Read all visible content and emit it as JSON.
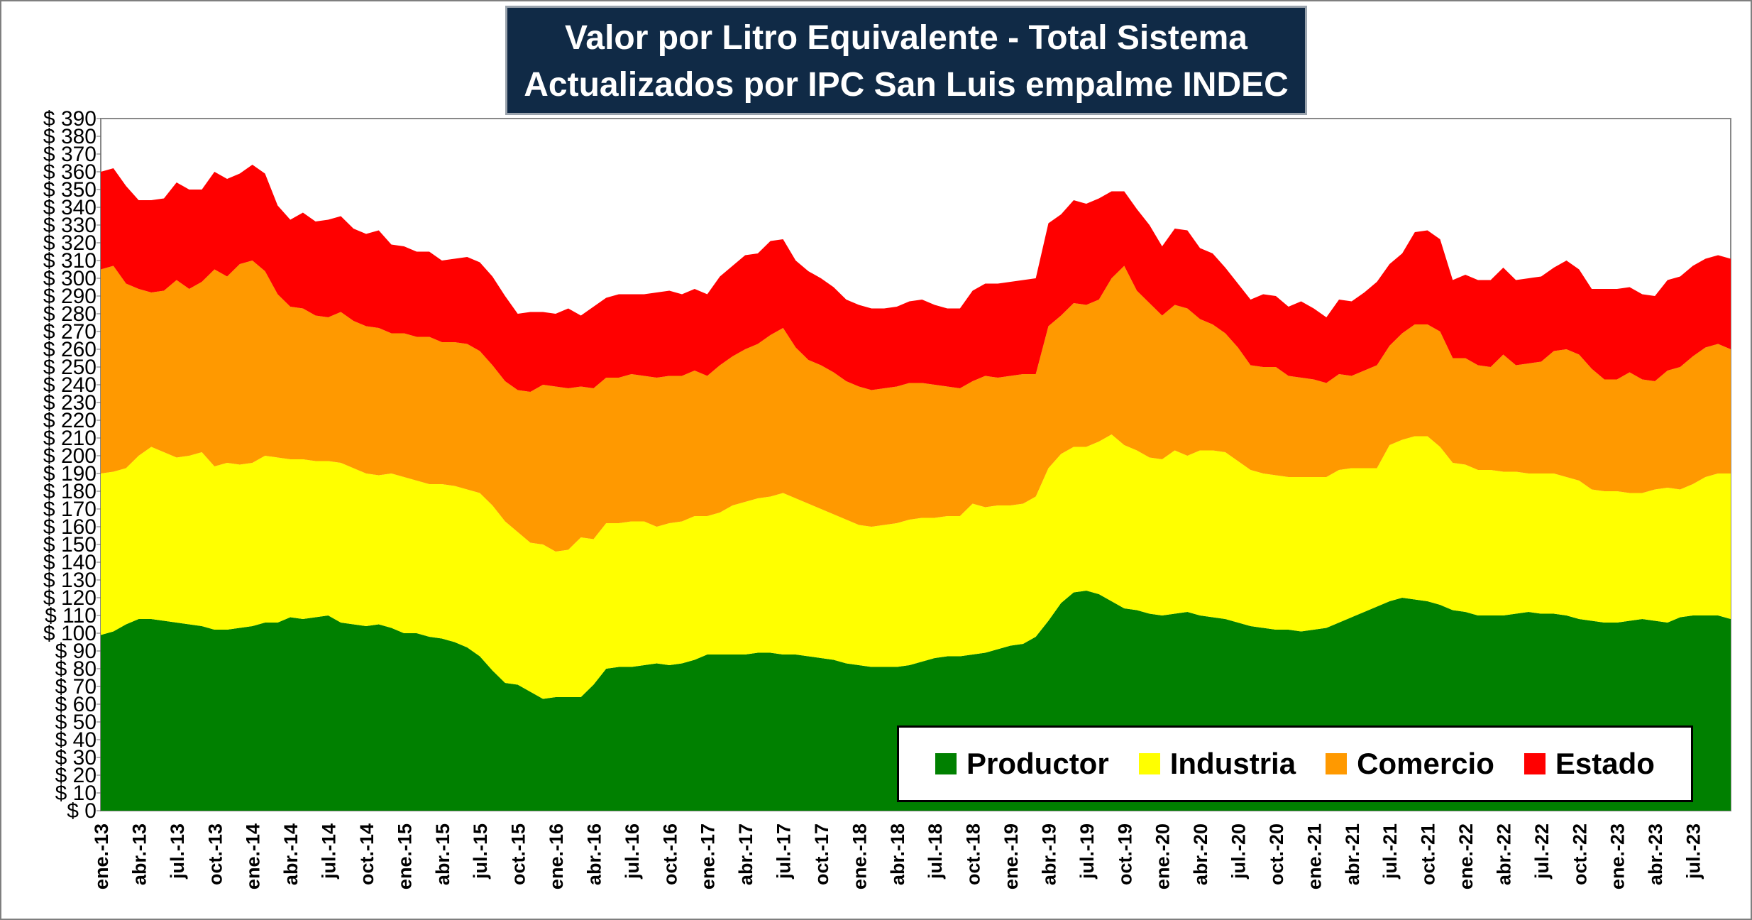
{
  "chart_data": {
    "type": "area",
    "stacked": true,
    "title": "Valor por Litro Equivalente - Total Sistema",
    "subtitle": "Actualizados por IPC San Luis empalme INDEC",
    "ylim": [
      0,
      390
    ],
    "ytick_step": 10,
    "ytick_prefix": "$",
    "grid": false,
    "legend_position": "bottom-right",
    "x_tick_labels": [
      "ene.-13",
      "abr.-13",
      "jul.-13",
      "oct.-13",
      "ene.-14",
      "abr.-14",
      "jul.-14",
      "oct.-14",
      "ene.-15",
      "abr.-15",
      "jul.-15",
      "oct.-15",
      "ene.-16",
      "abr.-16",
      "jul.-16",
      "oct.-16",
      "ene.-17",
      "abr.-17",
      "jul.-17",
      "oct.-17",
      "ene.-18",
      "abr.-18",
      "jul.-18",
      "oct.-18",
      "ene.-19",
      "abr.-19",
      "jul.-19",
      "oct.-19",
      "ene.-20",
      "abr.-20",
      "jul.-20",
      "oct.-20",
      "ene.-21",
      "abr.-21",
      "jul.-21",
      "oct.-21",
      "ene.-22",
      "abr.-22",
      "jul.-22",
      "oct.-22",
      "ene.-23",
      "abr.-23",
      "jul.-23"
    ],
    "series": [
      {
        "name": "Productor",
        "color": "#008000",
        "values": [
          99,
          101,
          105,
          108,
          108,
          107,
          106,
          105,
          104,
          102,
          102,
          103,
          104,
          106,
          106,
          109,
          108,
          109,
          110,
          106,
          105,
          104,
          105,
          103,
          100,
          100,
          98,
          97,
          95,
          92,
          87,
          79,
          72,
          71,
          67,
          63,
          64,
          64,
          64,
          71,
          80,
          81,
          81,
          82,
          83,
          82,
          83,
          85,
          88,
          88,
          88,
          88,
          89,
          89,
          88,
          88,
          87,
          86,
          85,
          83,
          82,
          81,
          81,
          81,
          82,
          84,
          86,
          87,
          87,
          88,
          89,
          91,
          93,
          94,
          98,
          107,
          117,
          123,
          124,
          122,
          118,
          114,
          113,
          111,
          110,
          111,
          112,
          110,
          109,
          108,
          106,
          104,
          103,
          102,
          102,
          101,
          102,
          103,
          106,
          109,
          112,
          115,
          118,
          120,
          119,
          118,
          116,
          113,
          112,
          110,
          110,
          110,
          111,
          112,
          111,
          111,
          110,
          108,
          107,
          106,
          106,
          107,
          108,
          107,
          106,
          109,
          110,
          110,
          110,
          108
        ]
      },
      {
        "name": "Industria",
        "color": "#ffff00",
        "values": [
          91,
          90,
          88,
          92,
          97,
          95,
          93,
          95,
          98,
          92,
          94,
          92,
          92,
          94,
          93,
          89,
          90,
          88,
          87,
          90,
          88,
          86,
          84,
          87,
          88,
          86,
          86,
          87,
          88,
          89,
          92,
          93,
          91,
          86,
          84,
          87,
          82,
          83,
          90,
          82,
          82,
          81,
          82,
          81,
          77,
          80,
          80,
          81,
          78,
          80,
          84,
          86,
          87,
          88,
          91,
          88,
          86,
          84,
          82,
          81,
          79,
          79,
          80,
          81,
          82,
          81,
          79,
          79,
          79,
          85,
          82,
          81,
          79,
          79,
          79,
          86,
          84,
          82,
          81,
          86,
          94,
          92,
          90,
          88,
          88,
          92,
          88,
          93,
          94,
          94,
          91,
          88,
          87,
          87,
          86,
          87,
          86,
          85,
          86,
          84,
          81,
          78,
          88,
          89,
          92,
          93,
          89,
          83,
          83,
          82,
          82,
          81,
          80,
          78,
          79,
          79,
          78,
          78,
          74,
          74,
          74,
          72,
          71,
          74,
          76,
          72,
          74,
          78,
          80,
          82
        ]
      },
      {
        "name": "Comercio",
        "color": "#ff9900",
        "values": [
          115,
          116,
          104,
          94,
          87,
          91,
          100,
          94,
          96,
          111,
          105,
          113,
          114,
          104,
          92,
          86,
          85,
          82,
          81,
          85,
          83,
          83,
          83,
          79,
          81,
          81,
          83,
          80,
          81,
          82,
          80,
          79,
          79,
          80,
          85,
          90,
          93,
          91,
          85,
          85,
          82,
          82,
          83,
          82,
          84,
          83,
          82,
          82,
          79,
          83,
          84,
          86,
          87,
          91,
          93,
          85,
          81,
          81,
          80,
          78,
          78,
          77,
          77,
          77,
          77,
          76,
          75,
          73,
          72,
          69,
          74,
          72,
          73,
          73,
          69,
          80,
          78,
          81,
          80,
          80,
          88,
          101,
          90,
          87,
          81,
          82,
          83,
          74,
          71,
          67,
          64,
          59,
          60,
          61,
          57,
          56,
          55,
          53,
          54,
          52,
          55,
          58,
          56,
          60,
          63,
          63,
          65,
          59,
          60,
          59,
          58,
          66,
          60,
          62,
          63,
          69,
          72,
          71,
          68,
          63,
          63,
          68,
          64,
          61,
          66,
          69,
          72,
          73,
          73,
          70
        ]
      },
      {
        "name": "Estado",
        "color": "#ff0000",
        "values": [
          55,
          55,
          55,
          50,
          52,
          52,
          55,
          56,
          52,
          55,
          55,
          51,
          54,
          55,
          50,
          49,
          54,
          53,
          55,
          54,
          52,
          52,
          55,
          50,
          49,
          48,
          48,
          46,
          47,
          49,
          50,
          50,
          48,
          43,
          45,
          41,
          41,
          45,
          40,
          46,
          45,
          47,
          45,
          46,
          48,
          48,
          46,
          46,
          46,
          50,
          51,
          53,
          51,
          53,
          50,
          49,
          50,
          49,
          48,
          46,
          46,
          46,
          45,
          45,
          46,
          47,
          45,
          44,
          45,
          51,
          52,
          53,
          53,
          53,
          54,
          58,
          57,
          58,
          57,
          57,
          49,
          42,
          46,
          44,
          39,
          43,
          44,
          40,
          40,
          37,
          36,
          37,
          41,
          40,
          39,
          43,
          40,
          37,
          42,
          42,
          44,
          47,
          46,
          45,
          52,
          53,
          52,
          44,
          47,
          48,
          49,
          49,
          48,
          48,
          48,
          47,
          50,
          48,
          45,
          51,
          51,
          48,
          48,
          48,
          51,
          51,
          51,
          50,
          50,
          51
        ]
      }
    ]
  }
}
